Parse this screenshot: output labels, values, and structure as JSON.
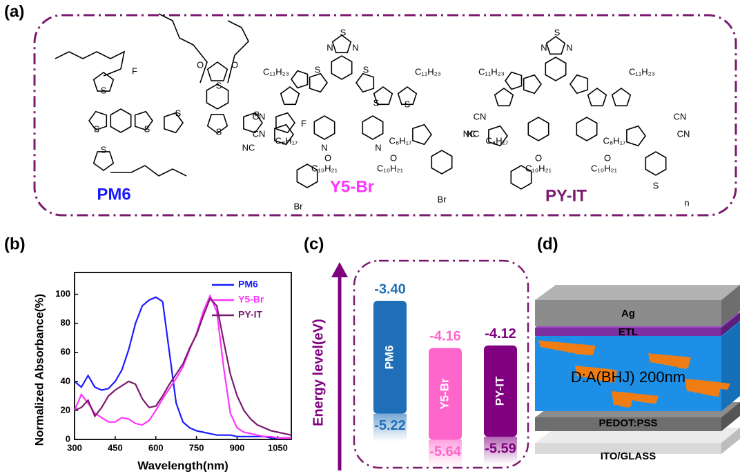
{
  "panel_labels": [
    "(a)",
    "(b)",
    "(c)",
    "(d)"
  ],
  "molecules": [
    {
      "name": "PM6",
      "color": "#1a1aff",
      "atoms": [
        "F",
        "S",
        "S",
        "S",
        "S",
        "O",
        "O",
        "S",
        "S",
        "n",
        "F",
        "S"
      ]
    },
    {
      "name": "Y5-Br",
      "color": "#ff33ff",
      "atoms": [
        "S",
        "N",
        "N",
        "C₁₁H₂₃",
        "C₁₁H₂₃",
        "S",
        "S",
        "S",
        "S",
        "N",
        "N",
        "CN",
        "CN",
        "NC",
        "NC",
        "C₈H₁₇",
        "C₈H₁₇",
        "C₁₀H₂₁",
        "C₁₀H₂₁",
        "O",
        "O",
        "Br",
        "Br"
      ]
    },
    {
      "name": "PY-IT",
      "color": "#7a1a6e",
      "atoms": [
        "S",
        "N",
        "N",
        "C₁₁H₂₃",
        "C₁₁H₂₃",
        "CN",
        "NC",
        "CN",
        "CN",
        "C₈H₁₇",
        "C₈H₁₇",
        "C₁₀H₂₁",
        "C₁₀H₂₁",
        "O",
        "O",
        "S",
        "n"
      ]
    }
  ],
  "chart_data": [
    {
      "type": "line",
      "xlabel": "Wavelength(nm)",
      "ylabel": "Normalized Absorbance(%)",
      "x": [
        300,
        325,
        350,
        375,
        400,
        425,
        450,
        475,
        500,
        525,
        550,
        575,
        600,
        625,
        650,
        675,
        700,
        725,
        750,
        775,
        800,
        825,
        850,
        875,
        900,
        925,
        950,
        975,
        1000,
        1025,
        1050,
        1075,
        1100
      ],
      "xlim": [
        300,
        1100
      ],
      "xticks": [
        300,
        450,
        600,
        750,
        900,
        1050
      ],
      "ylim": [
        0,
        115
      ],
      "yticks": [
        0,
        20,
        40,
        60,
        80,
        100
      ],
      "legend": "upper right",
      "series": [
        {
          "name": "PM6",
          "color": "#1a1aff",
          "values": [
            40,
            36,
            44,
            36,
            34,
            35,
            40,
            48,
            62,
            80,
            92,
            96,
            98,
            95,
            60,
            25,
            12,
            8,
            6,
            5,
            4,
            3,
            3,
            3,
            2,
            2,
            2,
            2,
            2,
            1,
            1,
            1,
            1
          ]
        },
        {
          "name": "Y5-Br",
          "color": "#ff33ff",
          "values": [
            20,
            31,
            25,
            18,
            15,
            12,
            12,
            15,
            14,
            11,
            10,
            13,
            20,
            28,
            35,
            42,
            50,
            62,
            73,
            88,
            99,
            88,
            50,
            18,
            8,
            5,
            4,
            3,
            2,
            2,
            1,
            1,
            1
          ]
        },
        {
          "name": "PY-IT",
          "color": "#7a1a6e",
          "values": [
            20,
            22,
            27,
            16,
            22,
            30,
            34,
            37,
            40,
            38,
            28,
            22,
            23,
            30,
            38,
            45,
            52,
            63,
            72,
            85,
            97,
            92,
            68,
            45,
            30,
            20,
            14,
            10,
            8,
            6,
            5,
            4,
            3
          ]
        }
      ]
    },
    {
      "type": "floating-bar",
      "ylabel": "Energy level(eV)",
      "ylim": [
        -6.0,
        -3.0
      ],
      "categories": [
        "PM6",
        "Y5-Br",
        "PY-IT"
      ],
      "colors": [
        "#1f6fb8",
        "#ff66cc",
        "#800080"
      ],
      "series": [
        {
          "values": [
            -3.4,
            -4.16,
            -4.12
          ],
          "value_labels": [
            "-3.40",
            "-4.16",
            "-4.12"
          ]
        },
        {
          "values": [
            -5.22,
            -5.64,
            -5.59
          ],
          "value_labels": [
            "-5.22",
            "-5.64",
            "-5.59"
          ]
        }
      ]
    }
  ],
  "device_layers": [
    "Ag",
    "ETL",
    "D:A(BHJ) 200nm",
    "PEDOT:PSS",
    "ITO/GLASS"
  ]
}
